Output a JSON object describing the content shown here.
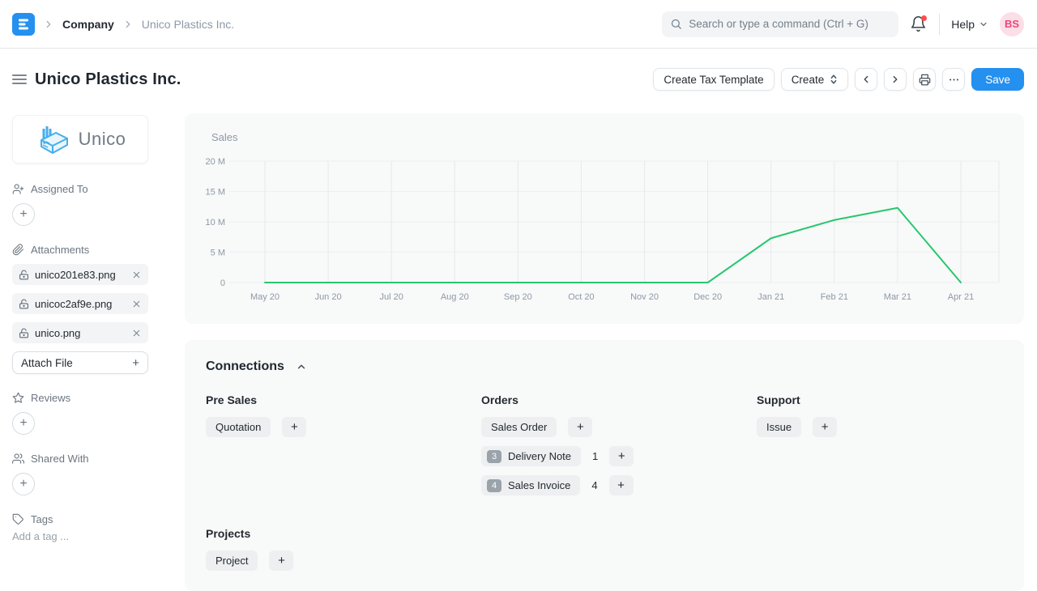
{
  "navbar": {
    "logo_icon": "erpnext-logo",
    "breadcrumb": {
      "section": "Company",
      "page": "Unico Plastics Inc."
    },
    "search": {
      "icon": "search-icon",
      "placeholder": "Search or type a command (Ctrl + G)"
    },
    "notifications": {
      "icon": "bell-icon",
      "has_unread": true
    },
    "help_label": "Help",
    "avatar_initials": "BS"
  },
  "header": {
    "title": "Unico Plastics Inc.",
    "buttons": {
      "create_tax_template": "Create Tax Template",
      "create": "Create",
      "prev_icon": "chevron-left-icon",
      "next_icon": "chevron-right-icon",
      "print_icon": "printer-icon",
      "menu_icon": "ellipsis-icon",
      "save": "Save"
    }
  },
  "sidebar": {
    "org_logo": {
      "icon": "factory-icon",
      "text": "Unico"
    },
    "assigned_to_label": "Assigned To",
    "attachments_label": "Attachments",
    "attachments": [
      {
        "name": "unico201e83.png"
      },
      {
        "name": "unicoc2af9e.png"
      },
      {
        "name": "unico.png"
      }
    ],
    "attach_file_label": "Attach File",
    "reviews_label": "Reviews",
    "shared_with_label": "Shared With",
    "tags_label": "Tags",
    "tags_placeholder": "Add a tag ..."
  },
  "chart_data": {
    "type": "line",
    "title": "Sales",
    "x": [
      "May 20",
      "Jun 20",
      "Jul 20",
      "Aug 20",
      "Sep 20",
      "Oct 20",
      "Nov 20",
      "Dec 20",
      "Jan 21",
      "Feb 21",
      "Mar 21",
      "Apr 21"
    ],
    "series": [
      {
        "name": "Sales",
        "values": [
          0,
          0,
          0,
          0,
          0,
          0,
          0,
          0,
          7.3,
          10.3,
          12.3,
          0
        ]
      }
    ],
    "unit": "M",
    "ylim": [
      0,
      20
    ],
    "yticks": [
      {
        "label": "20 M",
        "value": 20
      },
      {
        "label": "15 M",
        "value": 15
      },
      {
        "label": "10 M",
        "value": 10
      },
      {
        "label": "5 M",
        "value": 5
      },
      {
        "label": "0",
        "value": 0
      }
    ],
    "grid": true,
    "legend": "none",
    "line_color": "#28c76f"
  },
  "connections": {
    "title": "Connections",
    "collapse_icon": "chevron-up-icon",
    "groups": [
      {
        "label": "Pre Sales",
        "links": [
          {
            "label": "Quotation"
          }
        ]
      },
      {
        "label": "Orders",
        "links": [
          {
            "label": "Sales Order"
          },
          {
            "label": "Delivery Note",
            "badge": "3",
            "count": "1"
          },
          {
            "label": "Sales Invoice",
            "badge": "4",
            "count": "4"
          }
        ]
      },
      {
        "label": "Support",
        "links": [
          {
            "label": "Issue"
          }
        ]
      },
      {
        "label": "Projects",
        "links": [
          {
            "label": "Project"
          }
        ]
      }
    ]
  },
  "colors": {
    "accent": "#2490ef",
    "chart_line": "#28c76f",
    "avatar_bg": "#fcdee8",
    "avatar_text": "#e84a7a",
    "badge_bg": "#9aa2aa",
    "card_bg": "#f8f9f9",
    "notification_dot": "#ff4d4d"
  }
}
